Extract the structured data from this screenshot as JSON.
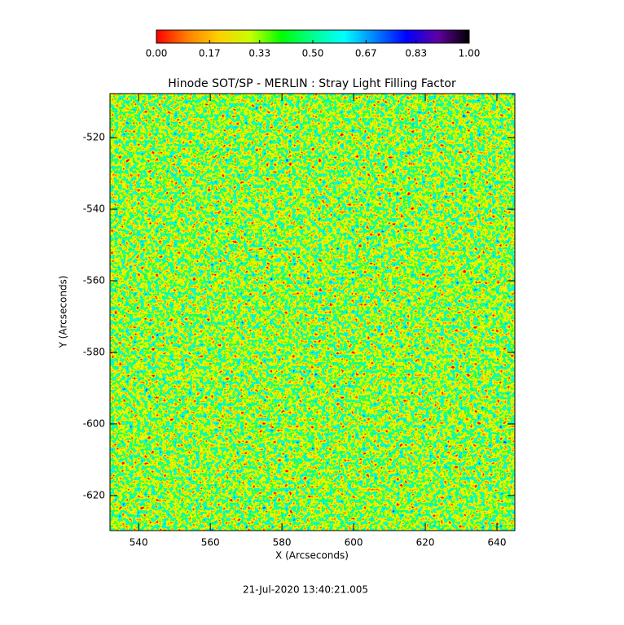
{
  "chart_data": {
    "type": "heatmap",
    "title": "Hinode SOT/SP - MERLIN : Stray Light Filling Factor",
    "xlabel": "X (Arcseconds)",
    "ylabel": "Y (Arcseconds)",
    "xlim": [
      532,
      645
    ],
    "xticks": [
      540,
      560,
      580,
      600,
      620,
      640
    ],
    "ylim": [
      -629.8,
      -507.7
    ],
    "yticks": [
      -520,
      -540,
      -560,
      -580,
      -600,
      -620
    ],
    "colorbar": {
      "lim": [
        0,
        1
      ],
      "ticks": [
        {
          "value": 0,
          "label": "0.00"
        },
        {
          "value": 0.17,
          "label": "0.17"
        },
        {
          "value": 0.33,
          "label": "0.33"
        },
        {
          "value": 0.5,
          "label": "0.50"
        },
        {
          "value": 0.67,
          "label": "0.67"
        },
        {
          "value": 0.83,
          "label": "0.83"
        },
        {
          "value": 1,
          "label": "1.00"
        }
      ]
    },
    "colormap": [
      "#ff0000",
      "#ff8000",
      "#ffd000",
      "#c8ff00",
      "#00ff00",
      "#00ff90",
      "#00ffff",
      "#0080ff",
      "#0000ff",
      "#6000a0",
      "#000000"
    ],
    "annotation": "21-Jul-2020 13:40:21.005"
  }
}
